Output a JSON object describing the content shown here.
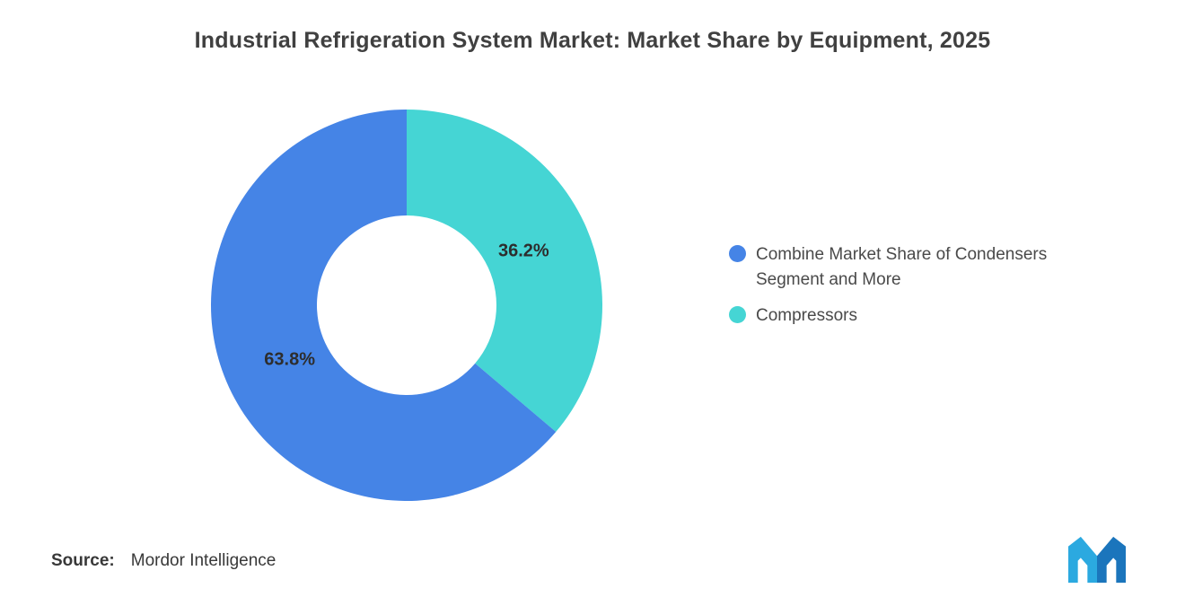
{
  "title": "Industrial Refrigeration System Market: Market Share by Equipment, 2025",
  "chart_data": {
    "type": "pie",
    "subtype": "donut",
    "title": "Industrial Refrigeration System Market: Market Share by Equipment, 2025",
    "units": "%",
    "rotation_deg": -90,
    "direction": "clockwise from 12 o'clock, Compressors slice first",
    "inner_radius_ratio": 0.46,
    "legend_position": "right",
    "slices": [
      {
        "label": "Combine Market Share of Condensers Segment and More",
        "value": 63.8,
        "display": "63.8%",
        "color": "#4584E6"
      },
      {
        "label": "Compressors",
        "value": 36.2,
        "display": "36.2%",
        "color": "#45D5D4"
      }
    ]
  },
  "legend": [
    {
      "label": "Combine Market Share of Condensers Segment and More",
      "color": "#4584E6"
    },
    {
      "label": "Compressors",
      "color": "#45D5D4"
    }
  ],
  "source": {
    "label": "Source:",
    "value": "Mordor Intelligence"
  },
  "logo": {
    "name": "mordor-intelligence-logo",
    "color_light": "#2BA9E0",
    "color_dark": "#1B75BC"
  }
}
